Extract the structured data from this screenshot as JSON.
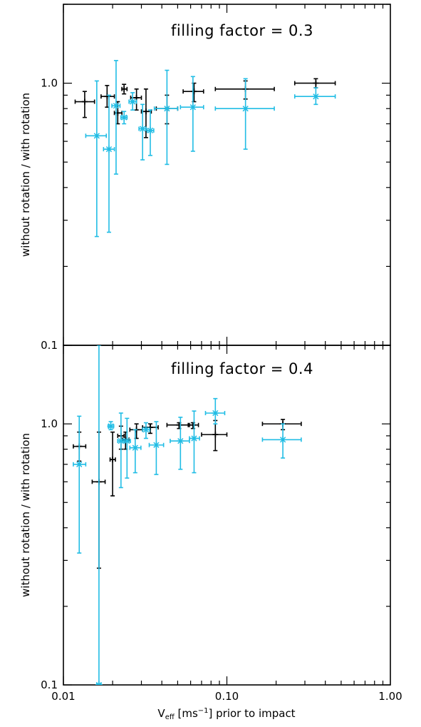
{
  "chart_data": [
    {
      "type": "scatter",
      "title": "filling factor = 0.3",
      "xlabel": "V_eff [ms^-1] prior to impact",
      "ylabel": "without rotation / with rotation",
      "xscale": "log",
      "yscale": "log",
      "xlim": [
        0.01,
        1.0
      ],
      "ylim": [
        0.1,
        2.0
      ],
      "xticks": [
        "0.01",
        "0.10",
        "1.00"
      ],
      "yticks": [
        "0.1",
        "1.0"
      ],
      "series": [
        {
          "color": "#000000",
          "marker": "plus",
          "points": [
            {
              "x": 0.0135,
              "xerr": [
                0.0118,
                0.0155
              ],
              "y": 0.85,
              "yerr": [
                0.74,
                0.93
              ]
            },
            {
              "x": 0.0185,
              "xerr": [
                0.017,
                0.0205
              ],
              "y": 0.89,
              "yerr": [
                0.81,
                0.98
              ]
            },
            {
              "x": 0.0215,
              "xerr": [
                0.0205,
                0.0228
              ],
              "y": 0.77,
              "yerr": [
                0.7,
                0.85
              ]
            },
            {
              "x": 0.0235,
              "xerr": [
                0.0228,
                0.0245
              ],
              "y": 0.95,
              "yerr": [
                0.91,
                0.99
              ]
            },
            {
              "x": 0.028,
              "xerr": [
                0.0258,
                0.03
              ],
              "y": 0.88,
              "yerr": [
                0.79,
                0.95
              ]
            },
            {
              "x": 0.032,
              "xerr": [
                0.03,
                0.0345
              ],
              "y": 0.78,
              "yerr": [
                0.62,
                0.95
              ]
            },
            {
              "x": 0.043,
              "xerr": [
                0.037,
                0.05
              ],
              "y": 0.8,
              "yerr": [
                0.7,
                0.9
              ]
            },
            {
              "x": 0.063,
              "xerr": [
                0.054,
                0.072
              ],
              "y": 0.93,
              "yerr": [
                0.85,
                1.0
              ]
            },
            {
              "x": 0.13,
              "xerr": [
                0.085,
                0.195
              ],
              "y": 0.95,
              "yerr": [
                0.87,
                1.02
              ]
            },
            {
              "x": 0.35,
              "xerr": [
                0.26,
                0.46
              ],
              "y": 1.0,
              "yerr": [
                0.96,
                1.04
              ]
            }
          ]
        },
        {
          "color": "#21bde5",
          "marker": "asterisk",
          "points": [
            {
              "x": 0.016,
              "xerr": [
                0.0137,
                0.0183
              ],
              "y": 0.63,
              "yerr": [
                0.26,
                1.02
              ]
            },
            {
              "x": 0.019,
              "xerr": [
                0.0176,
                0.0205
              ],
              "y": 0.56,
              "yerr": [
                0.27,
                0.9
              ]
            },
            {
              "x": 0.021,
              "xerr": [
                0.0198,
                0.0222
              ],
              "y": 0.82,
              "yerr": [
                0.45,
                1.22
              ]
            },
            {
              "x": 0.0235,
              "xerr": [
                0.0225,
                0.0245
              ],
              "y": 0.74,
              "yerr": [
                0.7,
                0.78
              ]
            },
            {
              "x": 0.0265,
              "xerr": [
                0.0252,
                0.028
              ],
              "y": 0.85,
              "yerr": [
                0.79,
                0.92
              ]
            },
            {
              "x": 0.0305,
              "xerr": [
                0.029,
                0.032
              ],
              "y": 0.67,
              "yerr": [
                0.51,
                0.83
              ]
            },
            {
              "x": 0.034,
              "xerr": [
                0.0325,
                0.0357
              ],
              "y": 0.66,
              "yerr": [
                0.53,
                0.79
              ]
            },
            {
              "x": 0.043,
              "xerr": [
                0.036,
                0.05
              ],
              "y": 0.8,
              "yerr": [
                0.49,
                1.12
              ]
            },
            {
              "x": 0.062,
              "xerr": [
                0.052,
                0.072
              ],
              "y": 0.81,
              "yerr": [
                0.55,
                1.06
              ]
            },
            {
              "x": 0.13,
              "xerr": [
                0.085,
                0.195
              ],
              "y": 0.8,
              "yerr": [
                0.56,
                1.04
              ]
            },
            {
              "x": 0.35,
              "xerr": [
                0.26,
                0.46
              ],
              "y": 0.89,
              "yerr": [
                0.83,
                0.96
              ]
            }
          ]
        }
      ]
    },
    {
      "type": "scatter",
      "title": "filling factor = 0.4",
      "xlabel": "V_eff [ms^-1] prior to impact",
      "ylabel": "without rotation / with rotation",
      "xscale": "log",
      "yscale": "log",
      "xlim": [
        0.01,
        1.0
      ],
      "ylim": [
        0.1,
        2.0
      ],
      "xticks": [
        "0.01",
        "0.10",
        "1.00"
      ],
      "yticks": [
        "0.1",
        "1.0"
      ],
      "series": [
        {
          "color": "#000000",
          "marker": "plus",
          "points": [
            {
              "x": 0.0125,
              "xerr": [
                0.0115,
                0.0137
              ],
              "y": 0.82,
              "yerr": [
                0.72,
                0.93
              ]
            },
            {
              "x": 0.0165,
              "xerr": [
                0.015,
                0.018
              ],
              "y": 0.6,
              "yerr": [
                0.28,
                0.93
              ]
            },
            {
              "x": 0.02,
              "xerr": [
                0.0193,
                0.0208
              ],
              "y": 0.73,
              "yerr": [
                0.53,
                0.93
              ]
            },
            {
              "x": 0.0225,
              "xerr": [
                0.0215,
                0.0235
              ],
              "y": 0.9,
              "yerr": [
                0.8,
                0.98
              ]
            },
            {
              "x": 0.024,
              "xerr": [
                0.023,
                0.0252
              ],
              "y": 0.87,
              "yerr": [
                0.8,
                0.93
              ]
            },
            {
              "x": 0.028,
              "xerr": [
                0.0255,
                0.0305
              ],
              "y": 0.95,
              "yerr": [
                0.88,
                1.0
              ]
            },
            {
              "x": 0.034,
              "xerr": [
                0.0305,
                0.038
              ],
              "y": 0.97,
              "yerr": [
                0.92,
                1.0
              ]
            },
            {
              "x": 0.051,
              "xerr": [
                0.043,
                0.059
              ],
              "y": 0.99,
              "yerr": [
                0.96,
                1.01
              ]
            },
            {
              "x": 0.062,
              "xerr": [
                0.058,
                0.067
              ],
              "y": 0.99,
              "yerr": [
                0.96,
                1.01
              ]
            },
            {
              "x": 0.085,
              "xerr": [
                0.07,
                0.1
              ],
              "y": 0.91,
              "yerr": [
                0.79,
                1.03
              ]
            },
            {
              "x": 0.22,
              "xerr": [
                0.165,
                0.285
              ],
              "y": 1.0,
              "yerr": [
                0.95,
                1.04
              ]
            }
          ]
        },
        {
          "color": "#21bde5",
          "marker": "asterisk",
          "points": [
            {
              "x": 0.0125,
              "xerr": [
                0.0115,
                0.0137
              ],
              "y": 0.7,
              "yerr": [
                0.32,
                1.07
              ]
            },
            {
              "x": 0.0165,
              "xerr": [
                0.016,
                0.017
              ],
              "y": 0.1,
              "yerr": [
                0.1,
                2.0
              ]
            },
            {
              "x": 0.0195,
              "xerr": [
                0.0188,
                0.0203
              ],
              "y": 0.98,
              "yerr": [
                0.95,
                1.02
              ]
            },
            {
              "x": 0.0225,
              "xerr": [
                0.0215,
                0.0235
              ],
              "y": 0.86,
              "yerr": [
                0.57,
                1.1
              ]
            },
            {
              "x": 0.0245,
              "xerr": [
                0.0235,
                0.0257
              ],
              "y": 0.86,
              "yerr": [
                0.62,
                1.05
              ]
            },
            {
              "x": 0.0275,
              "xerr": [
                0.0255,
                0.0298
              ],
              "y": 0.81,
              "yerr": [
                0.65,
                0.95
              ]
            },
            {
              "x": 0.032,
              "xerr": [
                0.0305,
                0.0337
              ],
              "y": 0.95,
              "yerr": [
                0.88,
                1.01
              ]
            },
            {
              "x": 0.037,
              "xerr": [
                0.0335,
                0.041
              ],
              "y": 0.83,
              "yerr": [
                0.64,
                1.02
              ]
            },
            {
              "x": 0.052,
              "xerr": [
                0.045,
                0.059
              ],
              "y": 0.86,
              "yerr": [
                0.67,
                1.06
              ]
            },
            {
              "x": 0.063,
              "xerr": [
                0.059,
                0.068
              ],
              "y": 0.88,
              "yerr": [
                0.65,
                1.12
              ]
            },
            {
              "x": 0.085,
              "xerr": [
                0.074,
                0.097
              ],
              "y": 1.1,
              "yerr": [
                1.0,
                1.25
              ]
            },
            {
              "x": 0.22,
              "xerr": [
                0.165,
                0.285
              ],
              "y": 0.87,
              "yerr": [
                0.74,
                1.0
              ]
            }
          ]
        }
      ]
    }
  ],
  "labels": {
    "xaxis_main": "V",
    "xaxis_sub": "eff",
    "xaxis_unit_open": " [ms",
    "xaxis_unit_sup": "−1",
    "xaxis_tail": "] prior to impact"
  }
}
